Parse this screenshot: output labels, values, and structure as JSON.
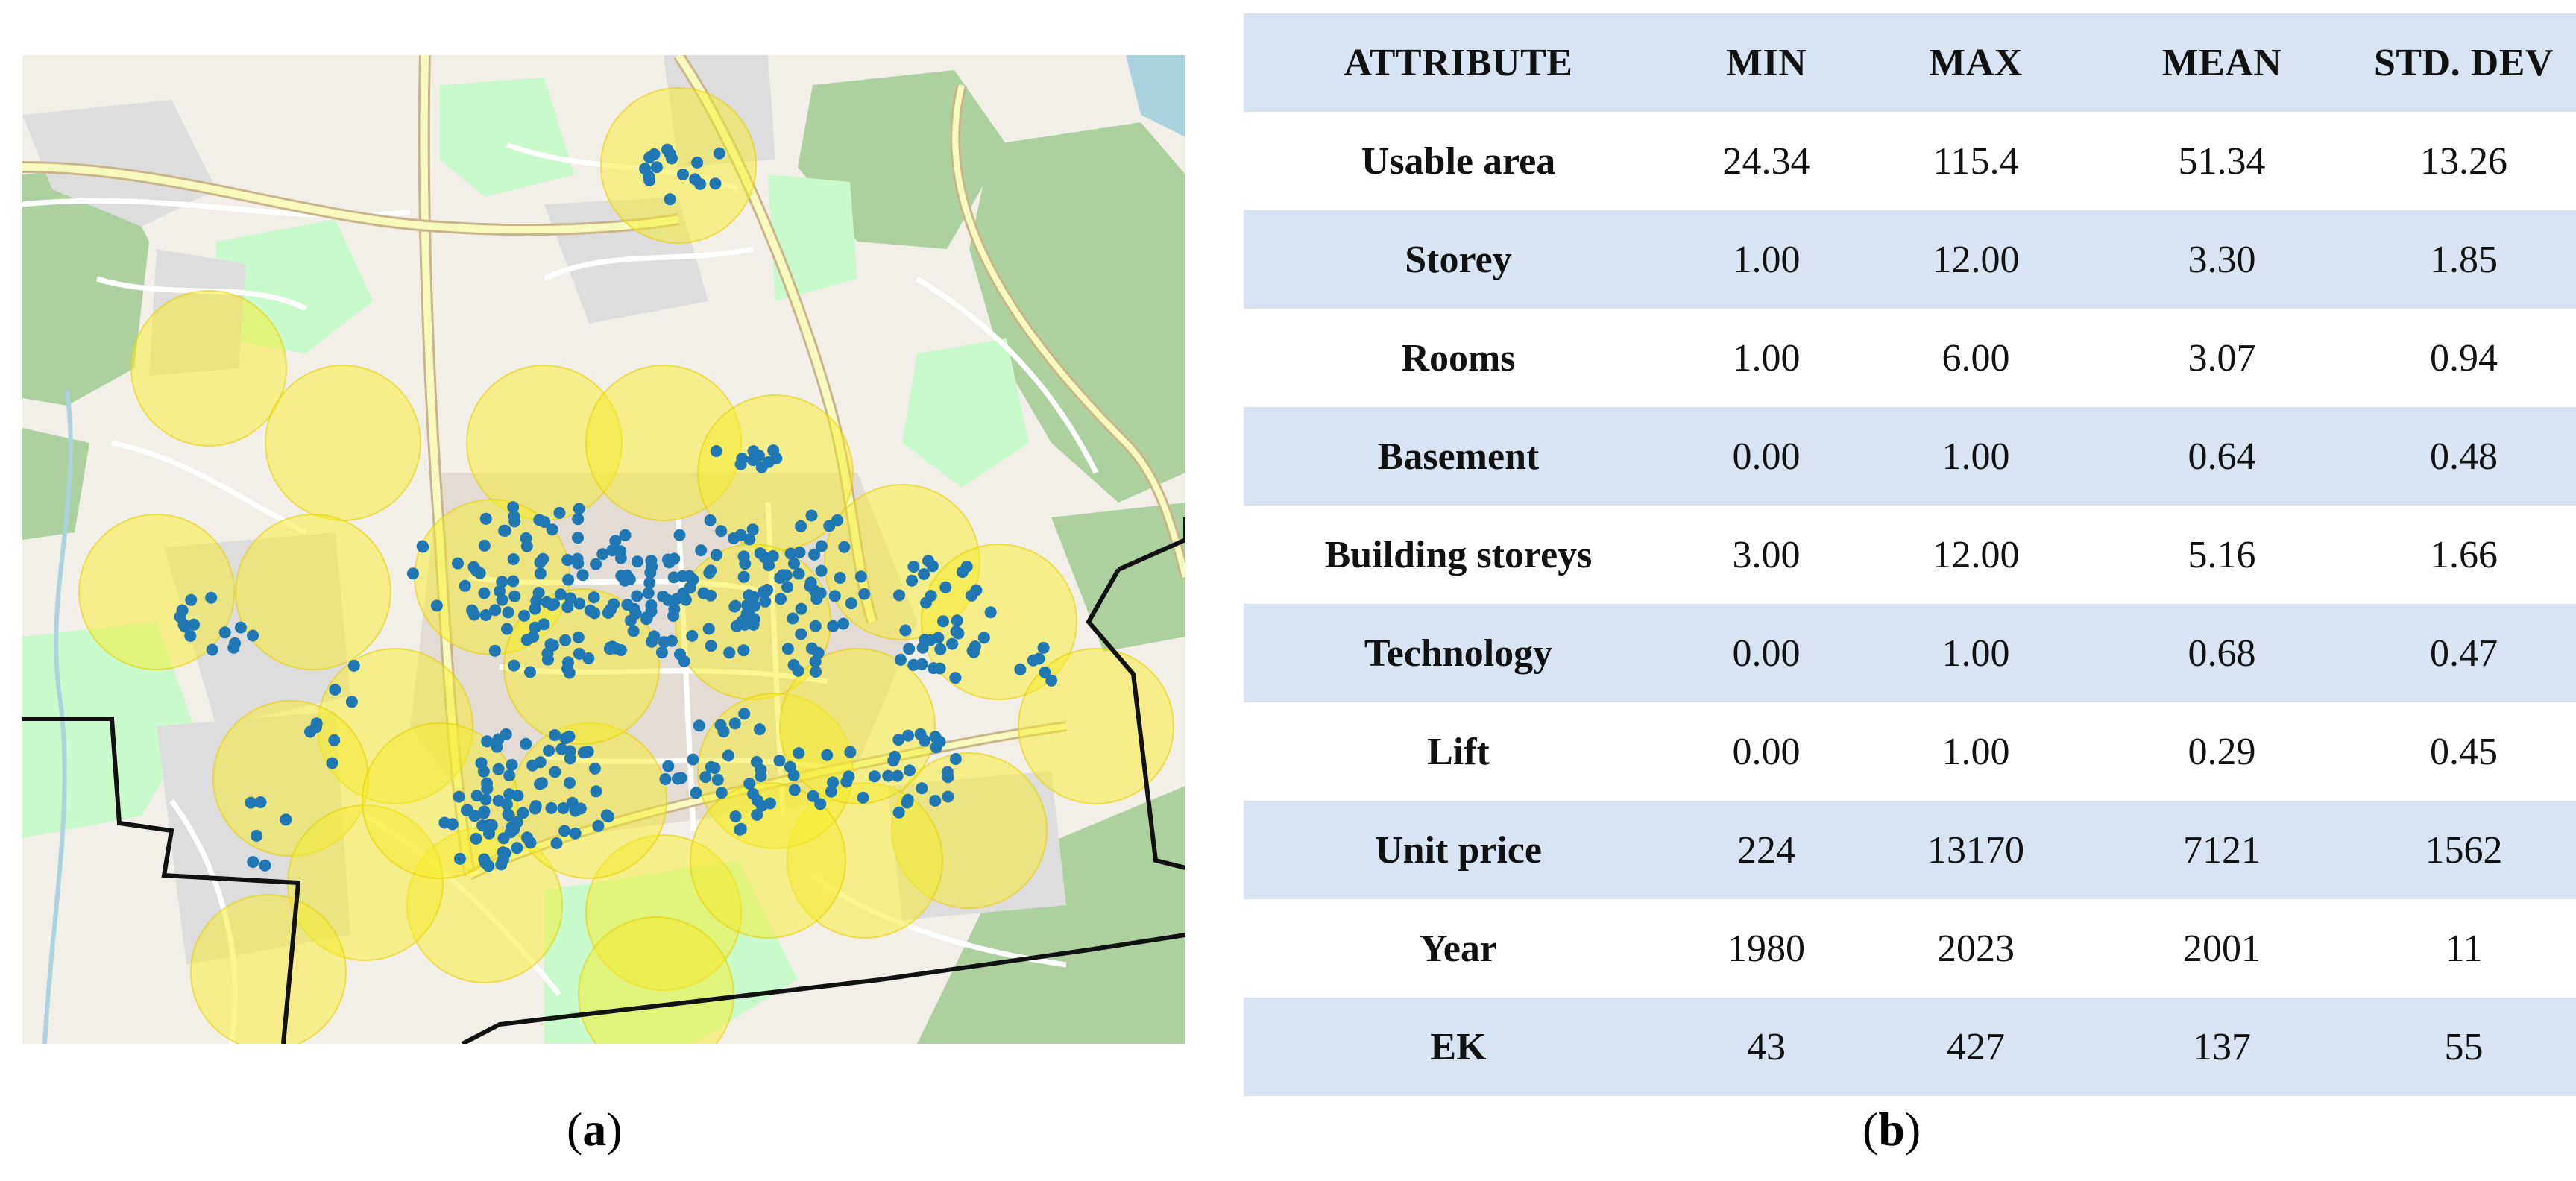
{
  "map": {
    "colors": {
      "land": "#f2efe9",
      "forest": "#add19e",
      "park": "#c8facc",
      "residential": "#dddddd",
      "road_major": "#f7fabf",
      "road_major_casing": "#c9b58a",
      "road_minor": "#ffffff",
      "water": "#aad3df",
      "buffer_fill": "#f7ec2a",
      "buffer_stroke": "#e8d000",
      "point": "#1f77b4",
      "boundary": "#000000"
    },
    "icons": [
      "map-buffer-zones",
      "map-apartment-points",
      "map-boundary-line"
    ]
  },
  "table": {
    "headers": [
      "ATTRIBUTE",
      "MIN",
      "MAX",
      "MEAN",
      "STD. DEV"
    ],
    "rows": [
      {
        "attribute": "Usable area",
        "min": "24.34",
        "max": "115.4",
        "mean": "51.34",
        "std": "13.26"
      },
      {
        "attribute": "Storey",
        "min": "1.00",
        "max": "12.00",
        "mean": "3.30",
        "std": "1.85"
      },
      {
        "attribute": "Rooms",
        "min": "1.00",
        "max": "6.00",
        "mean": "3.07",
        "std": "0.94"
      },
      {
        "attribute": "Basement",
        "min": "0.00",
        "max": "1.00",
        "mean": "0.64",
        "std": "0.48"
      },
      {
        "attribute": "Building storeys",
        "min": "3.00",
        "max": "12.00",
        "mean": "5.16",
        "std": "1.66"
      },
      {
        "attribute": "Technology",
        "min": "0.00",
        "max": "1.00",
        "mean": "0.68",
        "std": "0.47"
      },
      {
        "attribute": "Lift",
        "min": "0.00",
        "max": "1.00",
        "mean": "0.29",
        "std": "0.45"
      },
      {
        "attribute": "Unit price",
        "min": "224",
        "max": "13170",
        "mean": "7121",
        "std": "1562"
      },
      {
        "attribute": "Year",
        "min": "1980",
        "max": "2023",
        "mean": "2001",
        "std": "11"
      },
      {
        "attribute": "EK",
        "min": "43",
        "max": "427",
        "mean": "137",
        "std": "55"
      }
    ],
    "colors": {
      "shaded_row": "#d9e4f2",
      "plain_row": "#ffffff"
    }
  },
  "captions": {
    "a": {
      "open": "(",
      "letter": "a",
      "close": ")"
    },
    "b": {
      "open": "(",
      "letter": "b",
      "close": ")"
    }
  }
}
